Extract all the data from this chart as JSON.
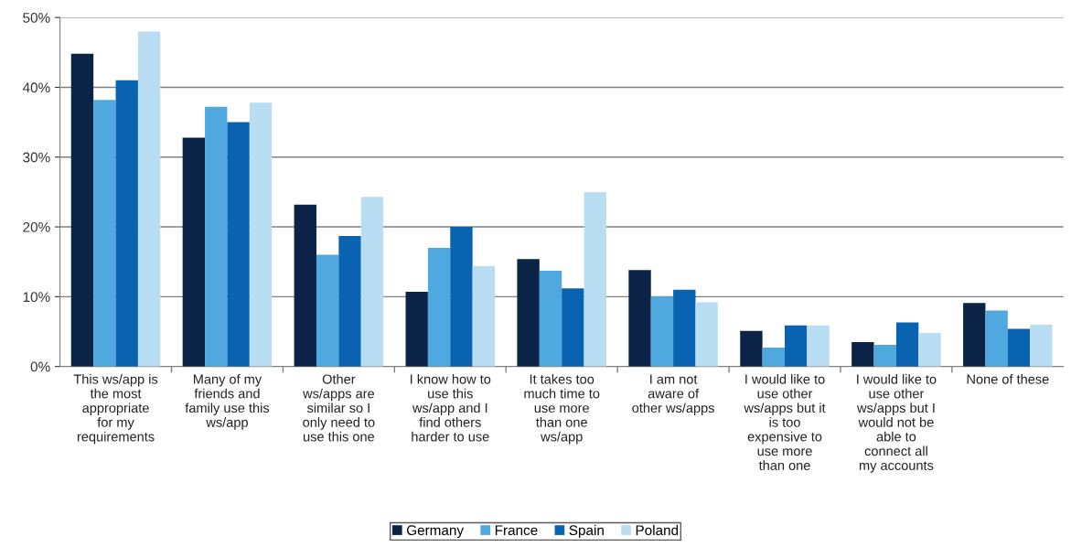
{
  "chart_data": {
    "type": "bar",
    "categories": [
      "This ws/app is\nthe most\nappropriate\nfor my\nrequirements",
      "Many of my\nfriends and\nfamily use this\nws/app",
      "Other\nws/apps are\nsimilar so I\nonly need to\nuse this one",
      "I know how to\nuse this\nws/app and I\nfind others\nharder to use",
      "It takes too\nmuch time to\nuse more\nthan one\nws/app",
      "I am not\naware of\nother ws/apps",
      "I would like to\nuse other\nws/apps but it\nis too\nexpensive to\nuse more\nthan one",
      "I would like to\nuse other\nws/apps but I\nwould not be\nable to\nconnect all\nmy accounts",
      "None of these"
    ],
    "series": [
      {
        "name": "Germany",
        "color": "#0b2346",
        "values": [
          44.8,
          32.8,
          23.2,
          10.7,
          15.4,
          13.8,
          5.1,
          3.5,
          9.1
        ]
      },
      {
        "name": "France",
        "color": "#4fa8de",
        "values": [
          38.2,
          37.2,
          16.0,
          17.0,
          13.7,
          10.0,
          2.7,
          3.1,
          8.0
        ]
      },
      {
        "name": "Spain",
        "color": "#0a63b0",
        "values": [
          41.0,
          35.0,
          18.7,
          20.0,
          11.2,
          11.0,
          5.9,
          6.3,
          5.4
        ]
      },
      {
        "name": "Poland",
        "color": "#b9def4",
        "values": [
          48.0,
          37.8,
          24.3,
          14.4,
          25.0,
          9.2,
          5.9,
          4.8,
          6.0
        ]
      }
    ],
    "ylim": [
      0,
      50
    ],
    "yticks": [
      {
        "value": 0,
        "label": "0%"
      },
      {
        "value": 10,
        "label": "10%"
      },
      {
        "value": 20,
        "label": "20%"
      },
      {
        "value": 30,
        "label": "30%"
      },
      {
        "value": 40,
        "label": "40%"
      },
      {
        "value": 50,
        "label": "50%"
      }
    ],
    "grid": "y",
    "legend": "bottom"
  }
}
